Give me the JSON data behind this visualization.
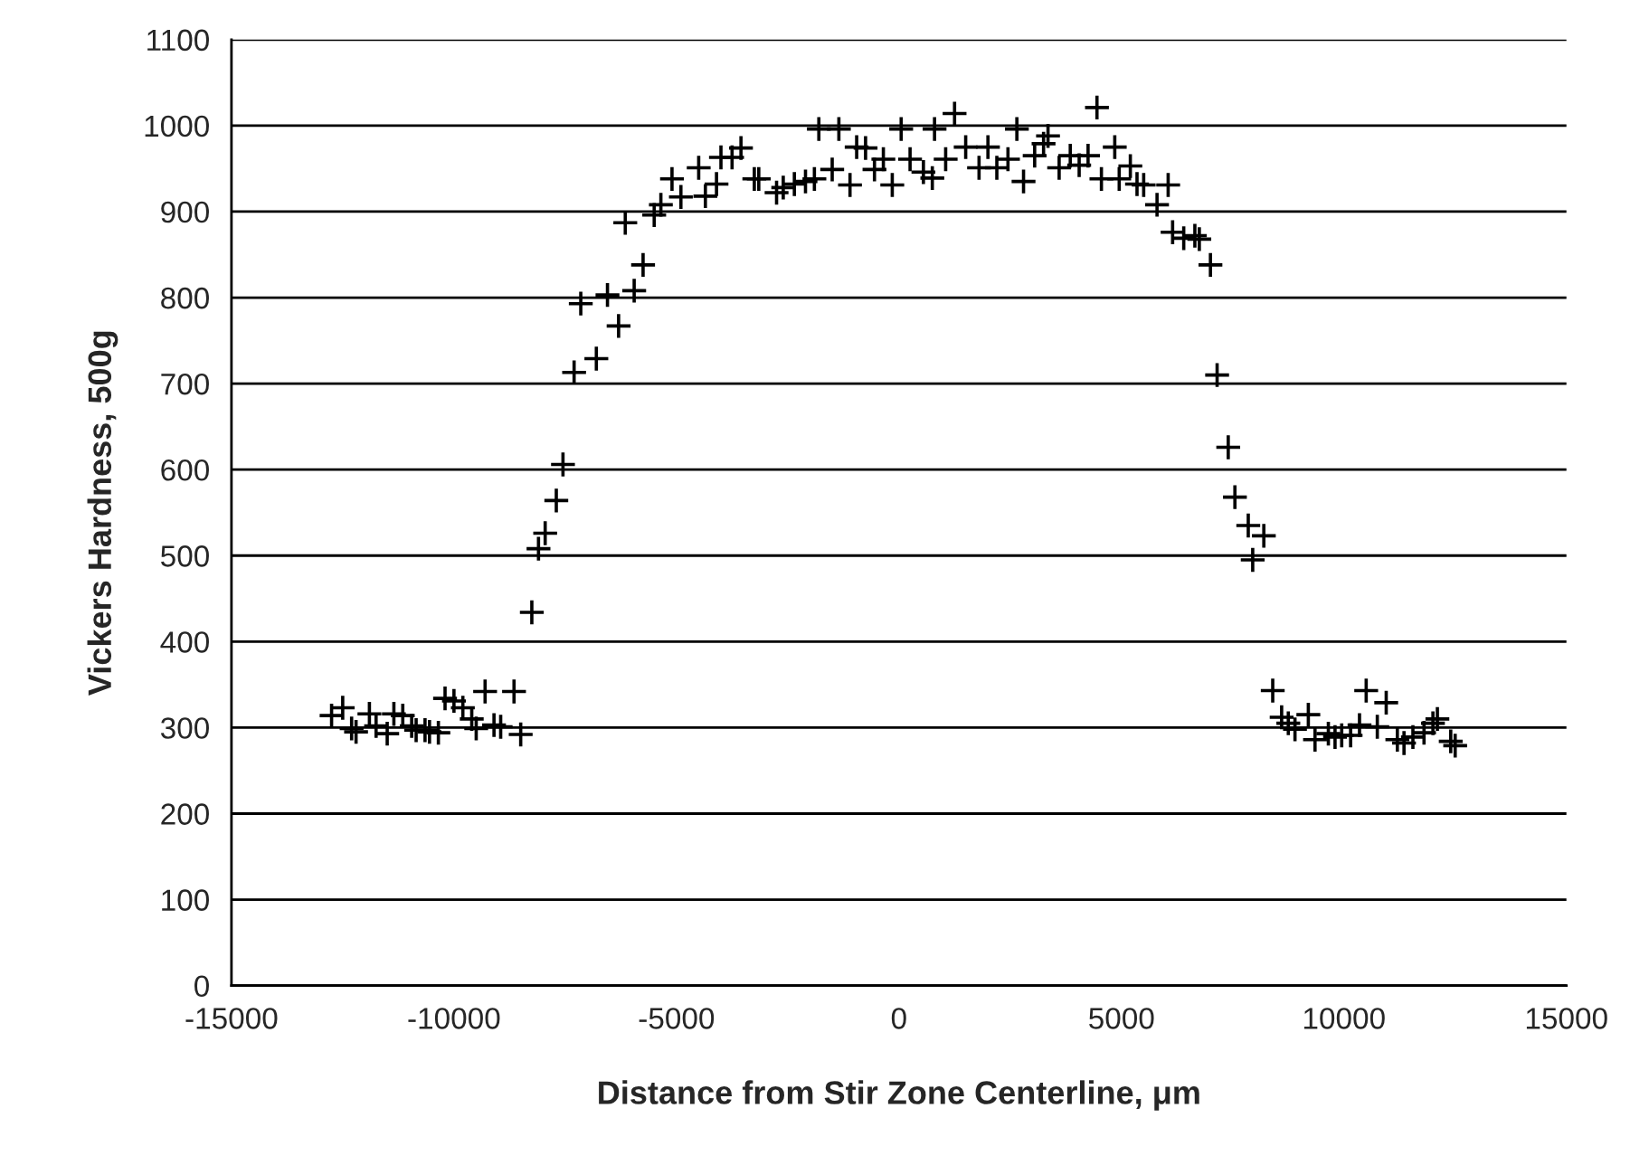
{
  "chart_data": {
    "type": "scatter",
    "xlabel": "Distance from Stir Zone Centerline, μm",
    "ylabel": "Vickers Hardness, 500g",
    "xlim": [
      -15000,
      15000
    ],
    "xticks": [
      -15000,
      -10000,
      -5000,
      0,
      5000,
      10000,
      15000
    ],
    "ylim": [
      0,
      1100
    ],
    "yticks": [
      0,
      100,
      200,
      300,
      400,
      500,
      600,
      700,
      800,
      900,
      1000,
      1100
    ],
    "grid": "y",
    "marker": "cross",
    "series": [
      {
        "color": "#000000",
        "x": [
          -12750,
          -12500,
          -12300,
          -12200,
          -11900,
          -11750,
          -11500,
          -11350,
          -11150,
          -10950,
          -10850,
          -10650,
          -10550,
          -10350,
          -10200,
          -10000,
          -9800,
          -9600,
          -9500,
          -9300,
          -9100,
          -8950,
          -8650,
          -8500,
          -8250,
          -8100,
          -7950,
          -7700,
          -7550,
          -7300,
          -6800,
          -6300,
          -7150,
          -6550,
          -5950,
          -5750,
          -6150,
          -5500,
          -5350,
          -4900,
          -4350,
          -5100,
          -4500,
          -4100,
          -4000,
          -3750,
          -3550,
          -3250,
          -3150,
          -2750,
          -2600,
          -2350,
          -2100,
          -1900,
          -1500,
          -1800,
          -1350,
          -1100,
          -950,
          -750,
          -550,
          -350,
          -150,
          50,
          250,
          550,
          800,
          750,
          1050,
          1250,
          1500,
          1800,
          2000,
          2200,
          2450,
          2650,
          2800,
          3050,
          3250,
          3350,
          3600,
          3850,
          4050,
          4250,
          4450,
          4550,
          4850,
          4950,
          5200,
          5350,
          5500,
          5800,
          6050,
          6150,
          6400,
          6650,
          6750,
          7000,
          7150,
          7400,
          7550,
          7850,
          8200,
          7950,
          8400,
          8600,
          8750,
          8900,
          9200,
          9350,
          9650,
          9800,
          9950,
          10150,
          10350,
          10500,
          10750,
          10950,
          11200,
          11350,
          11550,
          11800,
          12000,
          12100,
          12400,
          12500
        ],
        "values": [
          314,
          323,
          299,
          295,
          316,
          302,
          293,
          316,
          314,
          302,
          297,
          297,
          295,
          294,
          334,
          331,
          323,
          310,
          299,
          342,
          303,
          301,
          342,
          292,
          434,
          508,
          526,
          564,
          606,
          713,
          729,
          767,
          793,
          803,
          808,
          838,
          887,
          896,
          908,
          917,
          918,
          938,
          951,
          932,
          963,
          963,
          974,
          938,
          938,
          922,
          928,
          932,
          935,
          938,
          949,
          996,
          996,
          931,
          975,
          974,
          949,
          961,
          931,
          996,
          961,
          946,
          996,
          939,
          961,
          1014,
          975,
          951,
          975,
          951,
          961,
          996,
          935,
          965,
          979,
          988,
          951,
          965,
          954,
          965,
          1021,
          938,
          975,
          938,
          953,
          932,
          931,
          908,
          931,
          876,
          869,
          872,
          868,
          838,
          710,
          626,
          568,
          535,
          523,
          495,
          343,
          312,
          305,
          298,
          315,
          286,
          293,
          289,
          291,
          291,
          303,
          343,
          301,
          329,
          286,
          282,
          289,
          294,
          305,
          310,
          284,
          279
        ]
      }
    ]
  }
}
